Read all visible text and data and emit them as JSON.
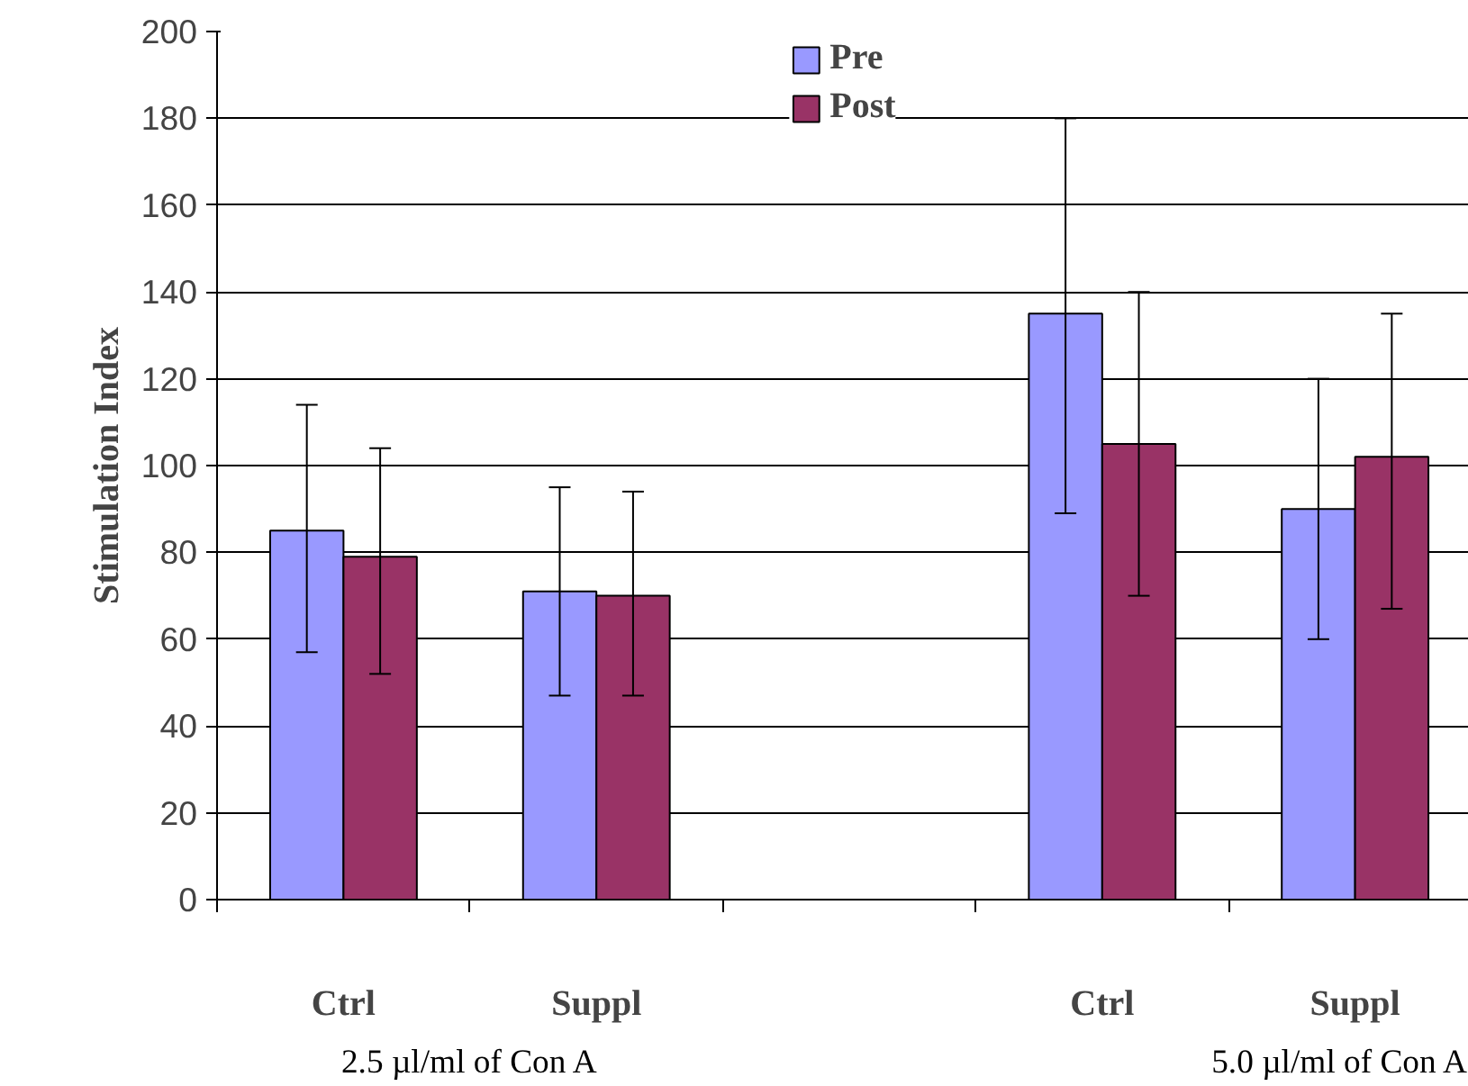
{
  "chart_data": {
    "type": "bar",
    "ylabel": "Stimulation Index",
    "categories": [
      "Ctrl",
      "Suppl",
      null,
      "Ctrl",
      "Suppl"
    ],
    "series": [
      {
        "name": "Pre",
        "color": "#9999ff",
        "values": [
          85,
          71,
          null,
          135,
          90
        ],
        "errors": [
          [
            57,
            114
          ],
          [
            47,
            95
          ],
          null,
          [
            89,
            180
          ],
          [
            60,
            120
          ]
        ]
      },
      {
        "name": "Post",
        "color": "#993366",
        "values": [
          79,
          70,
          null,
          105,
          102
        ],
        "errors": [
          [
            52,
            104
          ],
          [
            47,
            94
          ],
          null,
          [
            70,
            140
          ],
          [
            67,
            135
          ]
        ]
      }
    ],
    "ylim": [
      0,
      200
    ],
    "yticks": [
      0,
      20,
      40,
      60,
      80,
      100,
      120,
      140,
      160,
      180,
      200
    ],
    "grid": "y",
    "legend": "top",
    "annotations": [
      "2.5 µl/ml of Con A",
      "5.0 µl/ml of Con A"
    ]
  }
}
